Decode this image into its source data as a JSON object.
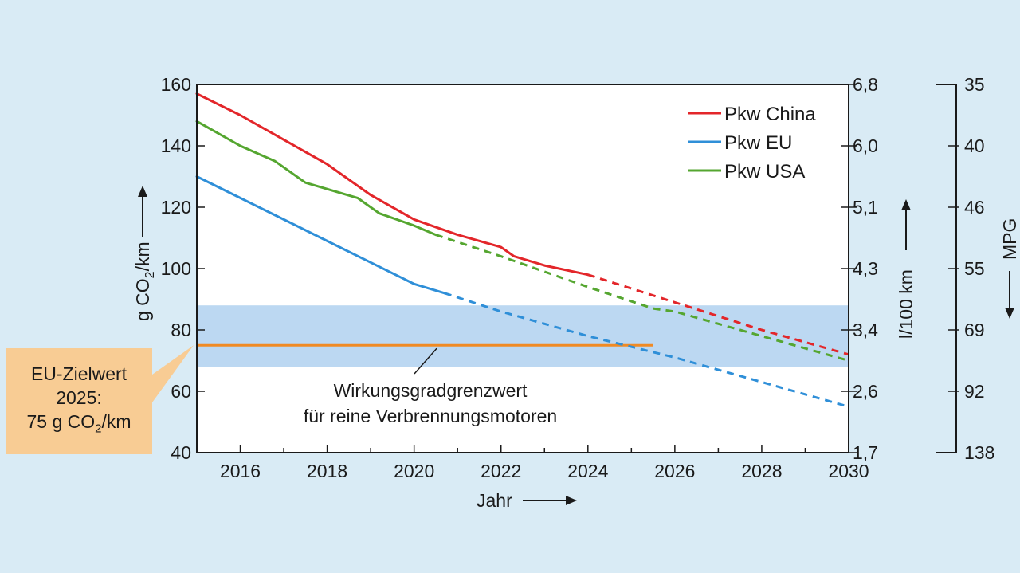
{
  "chart_data": {
    "type": "line",
    "xlabel": "Jahr",
    "ylabel_left": "g CO",
    "ylabel_left_sub": "2",
    "ylabel_left_unit": "/km",
    "ylabel_right": "l/100 km",
    "ylabel_far_right": "MPG",
    "xlim": [
      2015,
      2030
    ],
    "ylim": [
      40,
      160
    ],
    "x_ticks": [
      "2016",
      "2018",
      "2020",
      "2022",
      "2024",
      "2026",
      "2028",
      "2030"
    ],
    "y_ticks_left": [
      "40",
      "60",
      "80",
      "100",
      "120",
      "140",
      "160"
    ],
    "y_ticks_right": [
      "1,7",
      "2,6",
      "3,4",
      "4,3",
      "5,1",
      "6,0",
      "6,8"
    ],
    "y_ticks_mpg": [
      "138",
      "92",
      "69",
      "55",
      "46",
      "40",
      "35"
    ],
    "legend_position": "top-right",
    "colors": {
      "china": "#e3262a",
      "eu": "#2f8fd8",
      "usa": "#55a630",
      "limit": "#f08a24",
      "band": "#bcd8f2"
    },
    "series": [
      {
        "name": "Pkw China",
        "solid": [
          [
            2015,
            157
          ],
          [
            2016,
            150
          ],
          [
            2017,
            142
          ],
          [
            2018,
            134
          ],
          [
            2019,
            124
          ],
          [
            2020,
            116
          ],
          [
            2021,
            111
          ],
          [
            2022,
            107
          ],
          [
            2022.3,
            104
          ],
          [
            2023,
            101
          ],
          [
            2024,
            98
          ]
        ],
        "projected": [
          [
            2024,
            98
          ],
          [
            2026,
            89
          ],
          [
            2028,
            80
          ],
          [
            2030,
            72
          ]
        ]
      },
      {
        "name": "Pkw EU",
        "solid": [
          [
            2015,
            130
          ],
          [
            2016,
            123
          ],
          [
            2017,
            116
          ],
          [
            2018,
            109
          ],
          [
            2019,
            102
          ],
          [
            2020,
            95
          ],
          [
            2020.7,
            92
          ]
        ],
        "projected": [
          [
            2020.7,
            92
          ],
          [
            2022,
            86
          ],
          [
            2024,
            78
          ],
          [
            2026,
            71
          ],
          [
            2028,
            63
          ],
          [
            2030,
            55
          ]
        ]
      },
      {
        "name": "Pkw USA",
        "solid": [
          [
            2015,
            148
          ],
          [
            2016,
            140
          ],
          [
            2016.8,
            135
          ],
          [
            2017.5,
            128
          ],
          [
            2018.7,
            123
          ],
          [
            2019.2,
            118
          ],
          [
            2020,
            114
          ],
          [
            2020.5,
            111
          ]
        ],
        "projected": [
          [
            2020.5,
            111
          ],
          [
            2022,
            104
          ],
          [
            2024,
            94
          ],
          [
            2025.5,
            87
          ],
          [
            2026,
            86
          ],
          [
            2028,
            78
          ],
          [
            2030,
            70
          ]
        ]
      }
    ],
    "efficiency_band": [
      68,
      88
    ],
    "eu_target_line": {
      "y": 75,
      "x_end": 2025.5
    },
    "annotations": {
      "band_label_line1": "Wirkungsgradgrenzwert",
      "band_label_line2": "für reine Verbrennungsmotoren",
      "callout_line1": "EU-Zielwert",
      "callout_line2": "2025:",
      "callout_line3_prefix": "75 g CO",
      "callout_line3_sub": "2",
      "callout_line3_suffix": "/km"
    }
  }
}
